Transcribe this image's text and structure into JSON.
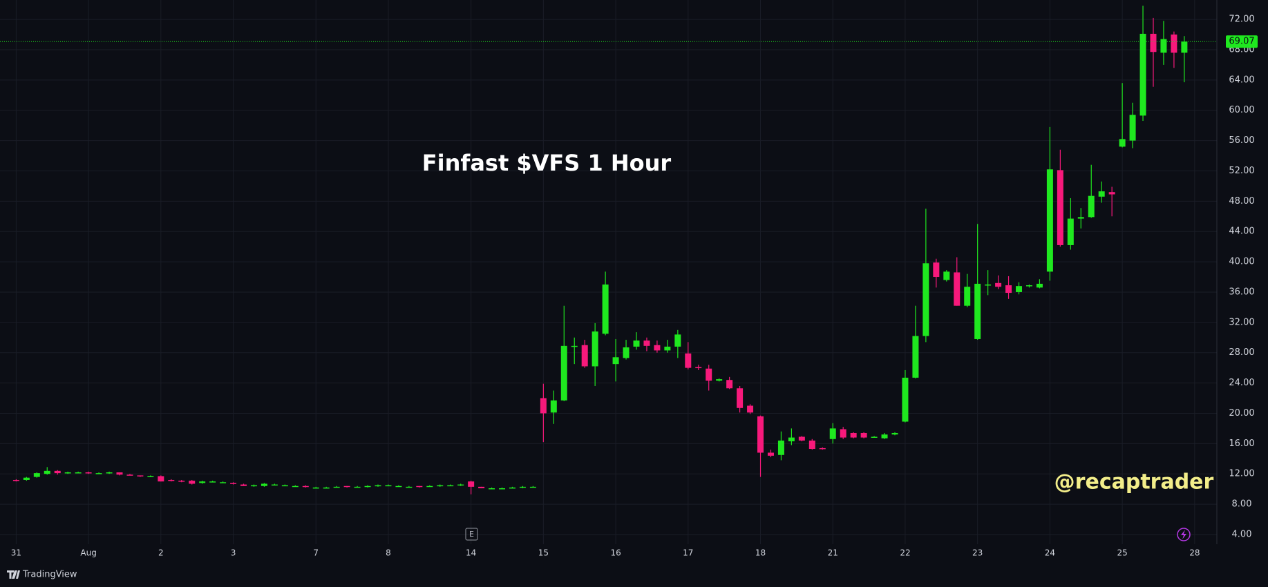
{
  "chart_data": {
    "type": "candlestick",
    "title": "Finfast $VFS 1 Hour",
    "watermark": "@recaptrader",
    "brand": "TradingView",
    "earnings_marker": "E",
    "categories": [
      "31",
      null,
      null,
      null,
      null,
      null,
      null,
      "Aug",
      null,
      null,
      null,
      null,
      null,
      null,
      "2",
      null,
      null,
      null,
      null,
      null,
      null,
      "3",
      null,
      null,
      null,
      null,
      null,
      null,
      null,
      "7",
      null,
      null,
      null,
      null,
      null,
      null,
      "8",
      null,
      null,
      null,
      null,
      null,
      null,
      null,
      "14",
      null,
      null,
      null,
      null,
      null,
      null,
      "15",
      null,
      null,
      null,
      null,
      null,
      null,
      "16",
      null,
      null,
      null,
      null,
      null,
      null,
      "17",
      null,
      null,
      null,
      null,
      null,
      null,
      "18",
      null,
      null,
      null,
      null,
      null,
      null,
      "21",
      null,
      null,
      null,
      null,
      null,
      null,
      "22",
      null,
      null,
      null,
      null,
      null,
      null,
      "23",
      null,
      null,
      null,
      null,
      null,
      null,
      "24",
      null,
      null,
      null,
      null,
      null,
      null,
      "25",
      null,
      null,
      null,
      null,
      null,
      null,
      "28"
    ],
    "open": [
      11.2,
      11.2,
      11.6,
      12.0,
      12.4,
      12.1,
      12.2,
      12.2,
      12.1,
      12.1,
      12.2,
      11.9,
      11.8,
      11.7,
      11.7,
      11.2,
      11.1,
      11.1,
      10.8,
      11.0,
      10.9,
      10.8,
      10.6,
      10.4,
      10.4,
      10.6,
      10.5,
      10.4,
      10.4,
      10.2,
      10.2,
      10.3,
      10.4,
      10.3,
      10.3,
      10.4,
      10.5,
      10.4,
      10.3,
      10.4,
      10.4,
      10.4,
      10.5,
      10.5,
      11.0,
      10.3,
      10.1,
      10.1,
      10.2,
      10.2,
      10.3,
      22.0,
      20.1,
      21.7,
      28.9,
      29.0,
      26.2,
      30.5,
      26.5,
      27.3,
      28.8,
      29.6,
      29.0,
      28.3,
      28.8,
      27.9,
      26.1,
      25.9,
      24.3,
      24.4,
      23.3,
      21.0,
      19.6,
      14.8,
      14.5,
      16.3,
      16.9,
      16.4,
      15.4,
      16.6,
      17.9,
      17.4,
      17.4,
      16.9,
      16.7,
      17.2,
      18.9,
      24.7,
      30.2,
      39.9,
      37.6,
      38.6,
      34.2,
      29.8,
      37.0,
      37.2,
      36.9,
      36.0,
      36.8,
      36.6,
      38.7,
      52.1,
      42.2,
      45.7,
      45.9,
      48.6,
      49.2,
      55.2,
      56.0,
      59.3,
      70.1,
      67.6,
      70.0,
      67.6,
      null
    ],
    "high": [
      11.3,
      11.6,
      12.2,
      12.9,
      12.5,
      12.3,
      12.3,
      12.3,
      12.2,
      12.3,
      12.2,
      12.0,
      11.8,
      11.8,
      11.8,
      11.3,
      11.2,
      11.2,
      11.1,
      11.1,
      11.0,
      10.9,
      10.7,
      10.6,
      10.8,
      10.7,
      10.6,
      10.5,
      10.5,
      10.3,
      10.3,
      10.4,
      10.4,
      10.4,
      10.5,
      10.6,
      10.6,
      10.5,
      10.4,
      10.4,
      10.5,
      10.6,
      10.6,
      10.7,
      11.1,
      10.3,
      10.2,
      10.2,
      10.3,
      10.4,
      10.4,
      23.9,
      23.0,
      34.2,
      30.0,
      29.7,
      31.9,
      38.7,
      29.8,
      29.7,
      30.7,
      30.0,
      29.6,
      29.7,
      31.0,
      29.4,
      26.4,
      26.4,
      24.6,
      24.8,
      23.6,
      21.2,
      19.7,
      15.2,
      17.6,
      18.0,
      17.0,
      16.6,
      15.5,
      18.7,
      18.2,
      17.5,
      17.5,
      17.0,
      17.4,
      17.5,
      25.7,
      34.2,
      47.0,
      40.4,
      38.9,
      40.6,
      38.4,
      45.0,
      38.9,
      38.2,
      38.1,
      37.3,
      37.0,
      37.7,
      57.8,
      54.8,
      48.4,
      47.1,
      52.8,
      50.6,
      49.9,
      63.6,
      61.0,
      73.8,
      72.2,
      71.8,
      70.4,
      69.8,
      null
    ],
    "low": [
      11.0,
      11.1,
      11.5,
      11.9,
      11.9,
      12.0,
      12.1,
      12.0,
      12.0,
      12.0,
      11.8,
      11.8,
      11.6,
      11.6,
      11.0,
      11.0,
      10.9,
      10.6,
      10.7,
      10.9,
      10.8,
      10.6,
      10.4,
      10.3,
      10.3,
      10.5,
      10.4,
      10.3,
      10.2,
      10.1,
      10.1,
      10.2,
      10.2,
      10.2,
      10.2,
      10.3,
      10.4,
      10.3,
      10.2,
      10.2,
      10.3,
      10.3,
      10.4,
      10.4,
      9.3,
      10.1,
      10.0,
      10.0,
      10.1,
      10.1,
      10.2,
      16.2,
      18.6,
      21.6,
      26.5,
      26.0,
      23.6,
      30.3,
      24.2,
      27.1,
      28.4,
      28.2,
      28.0,
      28.0,
      27.3,
      25.8,
      25.7,
      23.0,
      24.2,
      23.2,
      20.1,
      19.9,
      11.6,
      14.2,
      13.8,
      15.8,
      16.3,
      15.2,
      15.2,
      16.0,
      16.6,
      16.7,
      16.7,
      16.8,
      16.6,
      17.1,
      18.8,
      24.6,
      29.4,
      36.6,
      37.4,
      34.2,
      34.0,
      29.7,
      35.6,
      36.4,
      35.1,
      35.7,
      36.6,
      36.5,
      37.5,
      42.0,
      41.6,
      44.4,
      45.8,
      47.8,
      46.0,
      55.1,
      55.0,
      58.6,
      63.1,
      66.0,
      65.6,
      63.7,
      null
    ],
    "close": [
      11.1,
      11.5,
      12.1,
      12.4,
      12.1,
      12.2,
      12.2,
      12.1,
      12.1,
      12.2,
      11.9,
      11.8,
      11.7,
      11.7,
      11.0,
      11.1,
      11.0,
      10.7,
      11.0,
      11.0,
      10.9,
      10.7,
      10.4,
      10.5,
      10.7,
      10.6,
      10.5,
      10.4,
      10.3,
      10.2,
      10.2,
      10.3,
      10.3,
      10.3,
      10.4,
      10.5,
      10.5,
      10.4,
      10.3,
      10.3,
      10.4,
      10.5,
      10.5,
      10.6,
      10.3,
      10.1,
      10.1,
      10.1,
      10.2,
      10.3,
      10.3,
      20.0,
      21.7,
      28.9,
      28.9,
      26.2,
      30.8,
      37.0,
      27.4,
      28.7,
      29.6,
      28.9,
      28.3,
      28.8,
      30.4,
      26.0,
      26.0,
      24.3,
      24.5,
      23.3,
      20.7,
      20.1,
      14.8,
      14.4,
      16.4,
      16.8,
      16.4,
      15.3,
      15.3,
      18.0,
      16.8,
      16.8,
      16.8,
      16.9,
      17.2,
      17.4,
      24.7,
      30.2,
      39.8,
      38.0,
      38.7,
      34.2,
      36.7,
      37.1,
      37.0,
      36.7,
      35.9,
      36.8,
      36.9,
      37.1,
      52.2,
      42.2,
      45.7,
      45.9,
      48.7,
      49.3,
      48.9,
      56.2,
      59.4,
      70.1,
      67.7,
      69.4,
      67.6,
      69.07,
      null
    ],
    "up_color": "#1fe81f",
    "down_color": "#f7197b",
    "last_price": 69.07,
    "ylim": [
      2.72,
      74.56
    ],
    "yticks": [
      {
        "value": 4,
        "label": "4.00"
      },
      {
        "value": 8,
        "label": "8.00"
      },
      {
        "value": 12,
        "label": "12.00"
      },
      {
        "value": 16,
        "label": "16.00"
      },
      {
        "value": 20,
        "label": "20.00"
      },
      {
        "value": 24,
        "label": "24.00"
      },
      {
        "value": 28,
        "label": "28.00"
      },
      {
        "value": 32,
        "label": "32.00"
      },
      {
        "value": 36,
        "label": "36.00"
      },
      {
        "value": 40,
        "label": "40.00"
      },
      {
        "value": 44,
        "label": "44.00"
      },
      {
        "value": 48,
        "label": "48.00"
      },
      {
        "value": 52,
        "label": "52.00"
      },
      {
        "value": 56,
        "label": "56.00"
      },
      {
        "value": 60,
        "label": "60.00"
      },
      {
        "value": 64,
        "label": "64.00"
      },
      {
        "value": 68,
        "label": "68.00"
      },
      {
        "value": 72,
        "label": "72.00"
      }
    ],
    "grid": true
  }
}
